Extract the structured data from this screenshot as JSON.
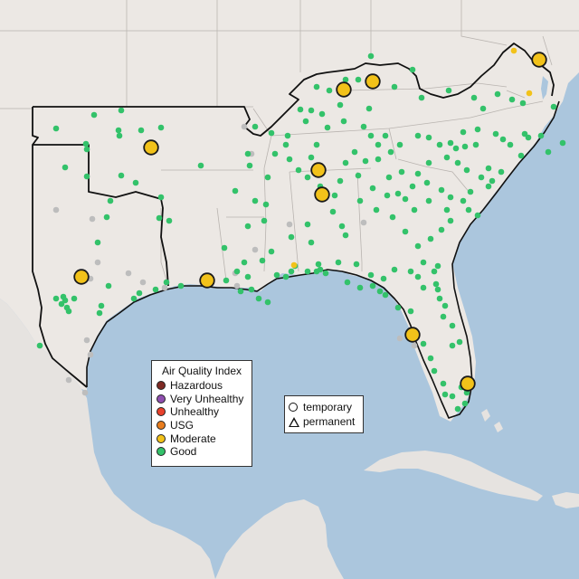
{
  "legend_aqi": {
    "title": "Air Quality Index",
    "levels": [
      {
        "label": "Hazardous",
        "color": "#7e2a24"
      },
      {
        "label": "Very Unhealthy",
        "color": "#8f4fb0"
      },
      {
        "label": "Unhealthy",
        "color": "#e8412c"
      },
      {
        "label": "USG",
        "color": "#e87d1e"
      },
      {
        "label": "Moderate",
        "color": "#f2c21a"
      },
      {
        "label": "Good",
        "color": "#33c26a"
      }
    ]
  },
  "legend_sites": {
    "temporary": "temporary",
    "permanent": "permanent"
  },
  "colors": {
    "water": "#abc6dd",
    "land": "#ece8e4",
    "no_data": "#bdbdbd"
  }
}
